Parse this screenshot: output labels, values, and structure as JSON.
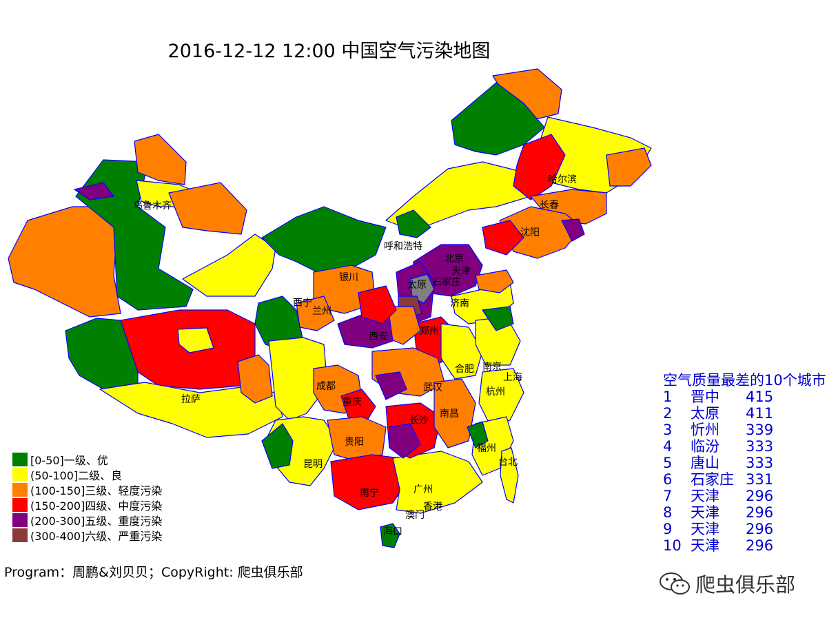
{
  "title": "2016-12-12 12:00 中国空气污染地图",
  "colors": {
    "excellent": "#008000",
    "good": "#ffff00",
    "light": "#ff7f00",
    "moderate": "#ff0000",
    "heavy": "#800080",
    "severe": "#8b3a3a",
    "nodata": "#808080",
    "border": "#0000ff",
    "ranking_text": "#0000cc"
  },
  "cities": [
    "乌鲁木齐",
    "哈尔滨",
    "长春",
    "沈阳",
    "呼和浩特",
    "北京",
    "天津",
    "银川",
    "太原",
    "石家庄",
    "西宁",
    "兰州",
    "济南",
    "西安",
    "郑州",
    "合肥",
    "南京",
    "上海",
    "成都",
    "重庆",
    "武汉",
    "杭州",
    "拉萨",
    "长沙",
    "南昌",
    "贵阳",
    "福州",
    "台北",
    "昆明",
    "南宁",
    "广州",
    "澳门",
    "香港",
    "海口"
  ],
  "legend": [
    {
      "label": "[0-50]一级、优",
      "color": "#008000"
    },
    {
      "label": "(50-100]二级、良",
      "color": "#ffff00"
    },
    {
      "label": "(100-150]三级、轻度污染",
      "color": "#ff7f00"
    },
    {
      "label": "(150-200]四级、中度污染",
      "color": "#ff0000"
    },
    {
      "label": "(200-300]五级、重度污染",
      "color": "#800080"
    },
    {
      "label": "(300-400]六级、严重污染",
      "color": "#8b3a3a"
    }
  ],
  "credit": "Program：周鹏&刘贝贝；CopyRight: 爬虫俱乐部",
  "ranking": {
    "heading": "空气质量最差的10个城市",
    "rows": [
      {
        "rank": "1",
        "city": "晋中",
        "value": "415"
      },
      {
        "rank": "2",
        "city": "太原",
        "value": "411"
      },
      {
        "rank": "3",
        "city": "忻州",
        "value": "339"
      },
      {
        "rank": "4",
        "city": "临汾",
        "value": "333"
      },
      {
        "rank": "5",
        "city": "唐山",
        "value": "333"
      },
      {
        "rank": "6",
        "city": "石家庄",
        "value": "331"
      },
      {
        "rank": "7",
        "city": "天津",
        "value": "296"
      },
      {
        "rank": "8",
        "city": "天津",
        "value": "296"
      },
      {
        "rank": "9",
        "city": "天津",
        "value": "296"
      },
      {
        "rank": "10",
        "city": "天津",
        "value": "296"
      }
    ]
  },
  "watermark": "爬虫俱乐部"
}
